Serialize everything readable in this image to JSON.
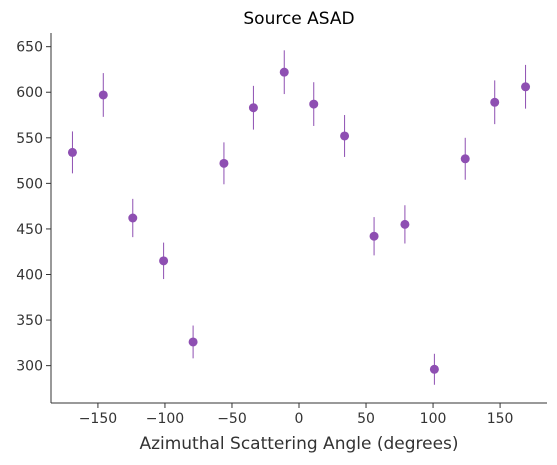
{
  "chart_data": {
    "type": "scatter",
    "title": "Source ASAD",
    "xlabel": "Azimuthal Scattering Angle (degrees)",
    "ylabel": "",
    "xlim": [
      -185,
      185
    ],
    "ylim": [
      259,
      665
    ],
    "x_ticks": [
      -150,
      -100,
      -50,
      0,
      50,
      100,
      150
    ],
    "x_tick_labels": [
      "−150",
      "−100",
      "−50",
      "0",
      "50",
      "100",
      "150"
    ],
    "y_ticks": [
      300,
      350,
      400,
      450,
      500,
      550,
      600,
      650
    ],
    "y_tick_labels": [
      "300",
      "350",
      "400",
      "450",
      "500",
      "550",
      "600",
      "650"
    ],
    "grid": false,
    "color": "#8e4fb2",
    "series": [
      {
        "points": [
          {
            "x": -169,
            "y": 534,
            "err": 23
          },
          {
            "x": -146,
            "y": 597,
            "err": 24
          },
          {
            "x": -124,
            "y": 462,
            "err": 21
          },
          {
            "x": -101,
            "y": 415,
            "err": 20
          },
          {
            "x": -79,
            "y": 326,
            "err": 18
          },
          {
            "x": -56,
            "y": 522,
            "err": 23
          },
          {
            "x": -34,
            "y": 583,
            "err": 24
          },
          {
            "x": -11,
            "y": 622,
            "err": 24
          },
          {
            "x": 11,
            "y": 587,
            "err": 24
          },
          {
            "x": 34,
            "y": 552,
            "err": 23
          },
          {
            "x": 56,
            "y": 442,
            "err": 21
          },
          {
            "x": 79,
            "y": 455,
            "err": 21
          },
          {
            "x": 101,
            "y": 296,
            "err": 17
          },
          {
            "x": 124,
            "y": 527,
            "err": 23
          },
          {
            "x": 146,
            "y": 589,
            "err": 24
          },
          {
            "x": 169,
            "y": 606,
            "err": 24
          }
        ]
      }
    ]
  }
}
